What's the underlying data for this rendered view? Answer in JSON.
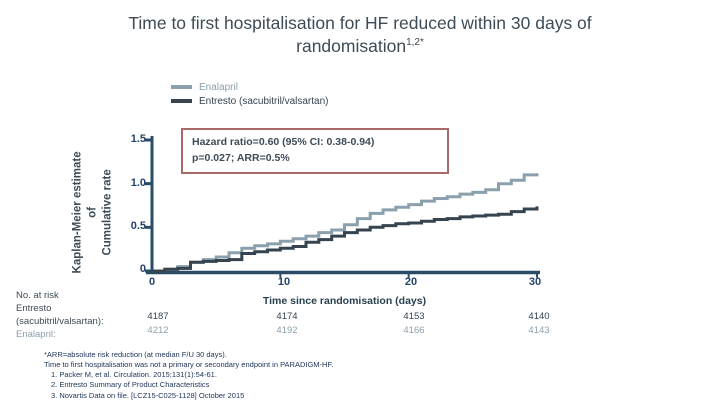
{
  "slide": {
    "title": {
      "line1": "Time to first hospitalisation for HF reduced within 30 days of",
      "line2": "randomisation",
      "superscript": "1,2*"
    }
  },
  "hazard_box": {
    "line1": "Hazard ratio=0.60 (95% CI: 0.38-0.94)",
    "line2": "p=0.027; ARR=0.5%",
    "border_color": "#a96a67"
  },
  "chart_data": {
    "type": "line",
    "subtype": "kaplan-meier-step",
    "xlabel": "Time since randomisation (days)",
    "ylabel": "Kaplan-Meier estimate of Cumulative rate",
    "ylabel_lines": [
      "Kaplan-Meier estimate",
      "of",
      "Cumulative rate"
    ],
    "xlim": [
      0,
      30
    ],
    "ylim": [
      0,
      1.5
    ],
    "xticks": [
      0,
      10,
      20,
      30
    ],
    "yticks": [
      0,
      0.5,
      1.0,
      1.5
    ],
    "xtick_labels": [
      "0",
      "10",
      "20",
      "30"
    ],
    "ytick_labels": [
      "0",
      "0.5",
      "1.0",
      "1.5"
    ],
    "axis_color": "#2a4c66",
    "grid": false,
    "legend_position": "top-left",
    "series": [
      {
        "name": "Enalapril",
        "color": "#8ba0ad",
        "x": [
          0,
          1,
          2,
          3,
          4,
          5,
          6,
          7,
          8,
          9,
          10,
          11,
          12,
          13,
          14,
          15,
          16,
          17,
          18,
          19,
          20,
          21,
          22,
          23,
          24,
          25,
          26,
          27,
          28,
          29,
          30
        ],
        "y": [
          0,
          0.02,
          0.05,
          0.1,
          0.13,
          0.16,
          0.21,
          0.26,
          0.29,
          0.31,
          0.34,
          0.37,
          0.4,
          0.44,
          0.47,
          0.53,
          0.6,
          0.66,
          0.7,
          0.73,
          0.76,
          0.8,
          0.83,
          0.85,
          0.88,
          0.9,
          0.93,
          1.0,
          1.04,
          1.1,
          1.12
        ]
      },
      {
        "name": "Entresto (sacubitril/valsartan)",
        "color": "#35444f",
        "x": [
          0,
          1,
          2,
          3,
          4,
          5,
          6,
          7,
          8,
          9,
          10,
          11,
          12,
          13,
          14,
          15,
          16,
          17,
          18,
          19,
          20,
          21,
          22,
          23,
          24,
          25,
          26,
          27,
          28,
          29,
          30
        ],
        "y": [
          0,
          0.02,
          0.03,
          0.1,
          0.11,
          0.12,
          0.13,
          0.2,
          0.22,
          0.24,
          0.26,
          0.28,
          0.33,
          0.36,
          0.4,
          0.44,
          0.47,
          0.5,
          0.52,
          0.54,
          0.55,
          0.57,
          0.59,
          0.6,
          0.62,
          0.63,
          0.64,
          0.65,
          0.68,
          0.71,
          0.74
        ]
      }
    ]
  },
  "risk_table": {
    "heading": "No. at risk",
    "rows": [
      {
        "label_line1": "Entresto",
        "label_line2": "(sacubitril/valsartan):",
        "values": [
          "4187",
          "4174",
          "4153",
          "4140"
        ]
      },
      {
        "label_line1": "Enalapril:",
        "values": [
          "4212",
          "4192",
          "4166",
          "4143"
        ]
      }
    ]
  },
  "footnotes": {
    "line1": "*ARR=absolute risk reduction (at median F/U 30 days).",
    "line2": "Time to first hospitalisation was not a primary or secondary endpoint in PARADIGM-HF.",
    "references": [
      "1. Packer M, et al. Circulation. 2015;131(1):54-61.",
      "2. Entresto Summary of Product Characteristics",
      "3. Novartis Data on file. [LCZ15-C025-1128] October 2015"
    ]
  }
}
